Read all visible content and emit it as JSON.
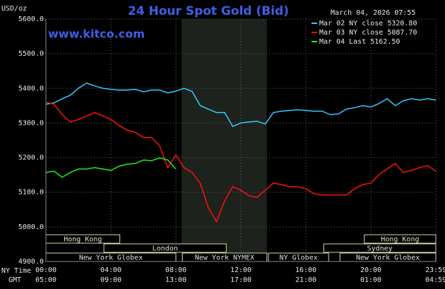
{
  "chart_data": {
    "type": "line",
    "title": "24 Hour Spot Gold (Bid)",
    "timestamp": "March 04, 2026 07:55",
    "watermark": "www.kitco.com",
    "y_label": "USD/oz",
    "x_row_labels": [
      "NY Time",
      "GMT"
    ],
    "x": [
      0,
      0.5,
      1,
      1.5,
      2,
      2.5,
      3,
      3.5,
      4,
      4.5,
      5,
      5.5,
      6,
      6.5,
      7,
      7.5,
      8,
      8.5,
      9,
      9.5,
      10,
      10.5,
      11,
      11.5,
      12,
      12.5,
      13,
      13.5,
      14,
      14.5,
      15,
      15.5,
      16,
      16.5,
      17,
      17.5,
      18,
      18.5,
      19,
      19.5,
      20,
      20.5,
      21,
      21.5,
      22,
      22.5,
      23,
      23.5,
      24
    ],
    "series": [
      {
        "name": "Mar 02 NY close 5320.80",
        "color": "#33ccff",
        "values": [
          5354,
          5358,
          5370,
          5380,
          5400,
          5415,
          5407,
          5400,
          5397,
          5395,
          5395,
          5397,
          5390,
          5395,
          5395,
          5387,
          5392,
          5400,
          5391,
          5350,
          5340,
          5330,
          5330,
          5290,
          5300,
          5303,
          5305,
          5297,
          5330,
          5334,
          5336,
          5338,
          5336,
          5334,
          5334,
          5324,
          5326,
          5340,
          5344,
          5350,
          5346,
          5356,
          5370,
          5350,
          5364,
          5370,
          5366,
          5370,
          5366
        ]
      },
      {
        "name": "Mar 03 NY close 5087.70",
        "color": "#ff1010",
        "values": [
          5360,
          5354,
          5324,
          5303,
          5310,
          5320,
          5330,
          5320,
          5310,
          5293,
          5279,
          5273,
          5258,
          5258,
          5234,
          5171,
          5208,
          5171,
          5157,
          5126,
          5055,
          5015,
          5075,
          5116,
          5106,
          5090,
          5085,
          5106,
          5126,
          5122,
          5116,
          5116,
          5110,
          5096,
          5092,
          5092,
          5092,
          5092,
          5110,
          5122,
          5126,
          5151,
          5167,
          5183,
          5157,
          5163,
          5171,
          5177,
          5161
        ]
      },
      {
        "name": "Mar 04 Last 5162.50",
        "color": "#22ee22",
        "values": [
          5157,
          5161,
          5143,
          5157,
          5167,
          5167,
          5171,
          5167,
          5163,
          5175,
          5181,
          5183,
          5193,
          5191,
          5199,
          5193,
          5167,
          null,
          null,
          null,
          null,
          null,
          null,
          null,
          null,
          null,
          null,
          null,
          null,
          null,
          null,
          null,
          null,
          null,
          null,
          null,
          null,
          null,
          null,
          null,
          null,
          null,
          null,
          null,
          null,
          null,
          null,
          null,
          null
        ]
      }
    ],
    "xlim": [
      0,
      24
    ],
    "xticks": [
      {
        "value": 0,
        "label": "00:00"
      },
      {
        "value": 4,
        "label": "04:00"
      },
      {
        "value": 8,
        "label": "08:00"
      },
      {
        "value": 12,
        "label": "12:00"
      },
      {
        "value": 16,
        "label": "16:00"
      },
      {
        "value": 20,
        "label": "20:00"
      },
      {
        "value": 24,
        "label": "23:59"
      }
    ],
    "xticks_gmt": [
      "05:00",
      "09:00",
      "13:00",
      "17:00",
      "21:00",
      "01:00",
      "04:59"
    ],
    "ylim": [
      4900,
      5600
    ],
    "yticks": [
      {
        "value": 4900,
        "label": "4900.0"
      },
      {
        "value": 5000,
        "label": "5000.0"
      },
      {
        "value": 5100,
        "label": "5100.0"
      },
      {
        "value": 5200,
        "label": "5200.0"
      },
      {
        "value": 5300,
        "label": "5300.0"
      },
      {
        "value": 5400,
        "label": "5400.0"
      },
      {
        "value": 5500,
        "label": "5500.0"
      },
      {
        "value": 5600,
        "label": "5600.0"
      }
    ],
    "grid": true,
    "shaded_range": [
      8.35,
      13.6
    ],
    "sessions": [
      {
        "label": "Hong Kong",
        "row": 0,
        "start": 0,
        "end": 4.55
      },
      {
        "label": "Hong Kong",
        "row": 0,
        "start": 19.6,
        "end": 24
      },
      {
        "label": "London",
        "row": 1,
        "start": 3.57,
        "end": 11.1
      },
      {
        "label": "Sydney",
        "row": 1,
        "start": 17.1,
        "end": 24
      },
      {
        "label": "New York Globex",
        "row": 2,
        "start": 0,
        "end": 8.0
      },
      {
        "label": "New York NYMEX",
        "row": 2,
        "start": 8.4,
        "end": 13.6
      },
      {
        "label": "NY Globex",
        "row": 2,
        "start": 13.7,
        "end": 17.4
      },
      {
        "label": "New York Globex",
        "row": 2,
        "start": 18.1,
        "end": 24
      }
    ]
  }
}
